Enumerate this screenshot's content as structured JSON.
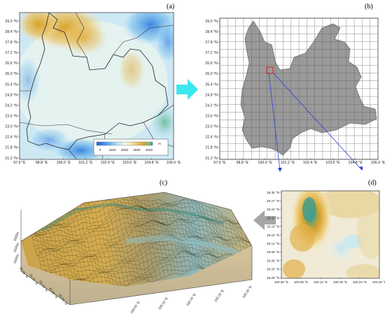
{
  "panels": {
    "a": {
      "label": "(a)",
      "lat_ticks": [
        "29.0 °N",
        "28.4 °N",
        "27.8 °N",
        "27.2 °N",
        "26.6 °N",
        "26.0 °N",
        "25.4 °N",
        "24.8 °N",
        "24.2 °N",
        "23.6 °N",
        "23.0 °N",
        "22.4 °N",
        "21.8 °N",
        "21.2 °N"
      ],
      "lon_ticks": [
        "97.6 °E",
        "98.8 °E",
        "100.0 °E",
        "101.2 °E",
        "102.4 °E",
        "103.6 °E",
        "104.8 °E",
        "106.0 °E"
      ],
      "colorbar": {
        "ticks": [
          "0",
          "1000",
          "2000",
          "3000",
          "4000"
        ],
        "unit": "m",
        "colors": [
          "#1f5fd6",
          "#5aa8ee",
          "#a9dcf2",
          "#eef5ee",
          "#f4e1b4",
          "#e8bd5c",
          "#d9a12a",
          "#7fbf8a",
          "#3e9f8a"
        ]
      }
    },
    "b": {
      "label": "(b)",
      "lat_ticks": [
        "29.0 °N",
        "28.4 °N",
        "27.8 °N",
        "27.2 °N",
        "26.6 °N",
        "26.0 °N",
        "25.4 °N",
        "24.8 °N",
        "24.2 °N",
        "23.6 °N",
        "23.0 °N",
        "22.4 °N",
        "21.8 °N",
        "21.2 °N"
      ],
      "lon_ticks": [
        "97.6 °E",
        "98.8 °E",
        "100.0 °E",
        "101.2 °E",
        "102.4 °E",
        "103.6 °E",
        "104.8 °E",
        "106.0 °E"
      ],
      "highlight_color": "#e02020",
      "arrow_color": "#2a3ed8"
    },
    "c": {
      "label": "(c)",
      "z_ticks": [
        "3000m",
        "2500m",
        "2000m"
      ],
      "x_ticks": [
        "26.05 °N",
        "26.10 °N",
        "26.15 °N",
        "26.20 °N",
        "26.25 °N"
      ],
      "y_ticks": [
        "100.05 °E",
        "100.10 °E",
        "100.15 °E",
        "100.20 °E",
        "100.25 °E"
      ]
    },
    "d": {
      "label": "(d)",
      "lat_ticks": [
        "26.30 °N",
        "26.27 °N",
        "26.24 °N",
        "26.21 °N",
        "26.18 °N",
        "26.15 °N",
        "26.12 °N",
        "26.09 °N",
        "26.06 °N",
        "26.03 °N",
        "26.00 °N"
      ],
      "lon_ticks": [
        "100.00 °E",
        "100.06 °E",
        "100.12 °E",
        "100.18 °E",
        "100.24 °E",
        "100.30 °E"
      ]
    }
  },
  "arrows": {
    "right_color": "#3ee6ee",
    "left_color": "#a6a6a6"
  }
}
